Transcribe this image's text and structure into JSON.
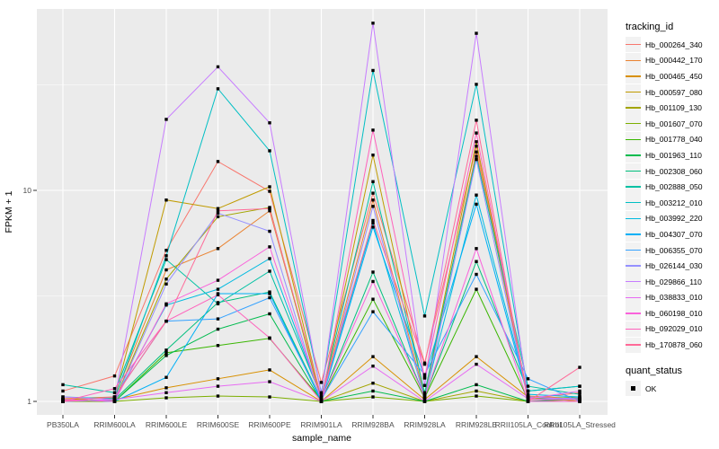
{
  "figure": {
    "background": "#FFFFFF",
    "panel_background": "#EBEBEB",
    "grid_color": "#FFFFFF",
    "axis_text_color": "#4D4D4D",
    "title_text_color": "#000000",
    "point_color": "#000000"
  },
  "chart_data": {
    "type": "line",
    "title": "",
    "xlabel": "sample_name",
    "ylabel": "FPKM + 1",
    "y_scale": "log10",
    "ylim": [
      0.86,
      72
    ],
    "grid": true,
    "legend_position": "right",
    "y_ticks": [
      {
        "label": "1",
        "value": 1
      },
      {
        "label": "10",
        "value": 10
      }
    ],
    "y_minor_breaks": [
      3.1623,
      31.623
    ],
    "point_marker": "black-square",
    "categories": [
      "PB350LA",
      "RRIM600LA",
      "RRIM600LE",
      "RRIM600SE",
      "RRIM600PE",
      "RRIM901LA",
      "RRIM928BA",
      "RRIM928LA",
      "RRIM928LE",
      "RRII105LA_Control",
      "RRII105LA_Stressed"
    ],
    "series": [
      {
        "name": "Hb_000264_340",
        "color": "#F8766D",
        "values": [
          1.12,
          1.32,
          5.2,
          13.7,
          9.9,
          1.23,
          9.7,
          1.52,
          16.2,
          1.03,
          1.1
        ]
      },
      {
        "name": "Hb_000442_170",
        "color": "#EA8331",
        "values": [
          1.03,
          1.05,
          4.2,
          5.3,
          8.0,
          1.04,
          9.0,
          1.06,
          15.2,
          1.06,
          1.03
        ]
      },
      {
        "name": "Hb_000465_450",
        "color": "#D89000",
        "values": [
          1.0,
          1.02,
          1.16,
          1.28,
          1.41,
          1.0,
          1.63,
          1.02,
          1.63,
          1.05,
          1.0
        ]
      },
      {
        "name": "Hb_000597_080",
        "color": "#C09B00",
        "values": [
          1.02,
          1.04,
          9.0,
          8.2,
          10.4,
          1.03,
          14.7,
          1.08,
          17.0,
          1.04,
          1.02
        ]
      },
      {
        "name": "Hb_001109_130",
        "color": "#A3A500",
        "values": [
          1.0,
          1.01,
          3.8,
          7.5,
          8.3,
          1.0,
          1.22,
          1.0,
          1.12,
          1.0,
          1.0
        ]
      },
      {
        "name": "Hb_001607_070",
        "color": "#7CAE00",
        "values": [
          1.0,
          1.0,
          1.04,
          1.06,
          1.05,
          1.0,
          1.05,
          1.0,
          1.06,
          1.0,
          1.02
        ]
      },
      {
        "name": "Hb_001778_040",
        "color": "#39B600",
        "values": [
          1.01,
          1.0,
          1.7,
          1.84,
          1.99,
          1.02,
          3.05,
          1.04,
          3.4,
          1.02,
          1.05
        ]
      },
      {
        "name": "Hb_001963_110",
        "color": "#00BB4E",
        "values": [
          1.02,
          1.0,
          1.65,
          2.2,
          2.6,
          1.0,
          1.12,
          1.0,
          1.2,
          1.0,
          1.03
        ]
      },
      {
        "name": "Hb_002308_060",
        "color": "#00BF7D",
        "values": [
          1.0,
          1.02,
          1.75,
          2.94,
          3.3,
          1.02,
          4.1,
          1.05,
          4.6,
          1.12,
          1.18
        ]
      },
      {
        "name": "Hb_002888_050",
        "color": "#00C1A3",
        "values": [
          1.2,
          1.1,
          4.7,
          2.9,
          4.14,
          1.05,
          11.0,
          1.1,
          14.5,
          1.18,
          1.08
        ]
      },
      {
        "name": "Hb_003212_010",
        "color": "#00BFC4",
        "values": [
          1.05,
          1.03,
          4.9,
          30.3,
          15.4,
          1.1,
          37.0,
          2.54,
          31.8,
          1.12,
          1.18
        ]
      },
      {
        "name": "Hb_003992_220",
        "color": "#00BAE0",
        "values": [
          1.0,
          1.02,
          2.86,
          3.4,
          4.75,
          1.03,
          7.0,
          1.05,
          9.5,
          1.08,
          1.05
        ]
      },
      {
        "name": "Hb_004307_070",
        "color": "#00B0F6",
        "values": [
          1.02,
          1.0,
          1.3,
          3.24,
          3.24,
          1.0,
          6.7,
          1.3,
          8.6,
          1.05,
          1.02
        ]
      },
      {
        "name": "Hb_006355_070",
        "color": "#35A2FF",
        "values": [
          1.0,
          1.05,
          2.4,
          2.46,
          3.1,
          1.02,
          2.66,
          1.34,
          4.0,
          1.28,
          1.0
        ]
      },
      {
        "name": "Hb_026144_030",
        "color": "#9590FF",
        "values": [
          1.02,
          1.0,
          3.6,
          7.8,
          6.4,
          1.0,
          8.4,
          1.02,
          14.0,
          1.02,
          1.04
        ]
      },
      {
        "name": "Hb_029866_110",
        "color": "#C77CFF",
        "values": [
          1.05,
          1.02,
          21.7,
          38.5,
          20.9,
          1.08,
          62.0,
          1.19,
          55.5,
          1.05,
          1.02
        ]
      },
      {
        "name": "Hb_038833_010",
        "color": "#E76BF3",
        "values": [
          1.0,
          1.02,
          1.1,
          1.18,
          1.24,
          1.0,
          1.47,
          1.0,
          1.5,
          1.03,
          1.12
        ]
      },
      {
        "name": "Hb_060198_010",
        "color": "#FA62DB",
        "values": [
          1.02,
          1.0,
          2.9,
          3.75,
          5.4,
          1.02,
          3.7,
          1.05,
          5.3,
          1.0,
          1.0
        ]
      },
      {
        "name": "Hb_092029_010",
        "color": "#FF62BC",
        "values": [
          1.0,
          1.15,
          2.4,
          3.2,
          2.0,
          1.0,
          19.3,
          1.29,
          18.7,
          1.02,
          1.02
        ]
      },
      {
        "name": "Hb_170878_060",
        "color": "#FF6A98",
        "values": [
          1.0,
          1.05,
          2.4,
          8.0,
          8.2,
          1.05,
          7.2,
          1.5,
          21.5,
          1.0,
          1.45
        ]
      }
    ],
    "legend": {
      "color_title": "tracking_id",
      "shape_title": "quant_status",
      "shape_items": [
        {
          "label": "OK",
          "marker": "black-square"
        }
      ]
    }
  }
}
